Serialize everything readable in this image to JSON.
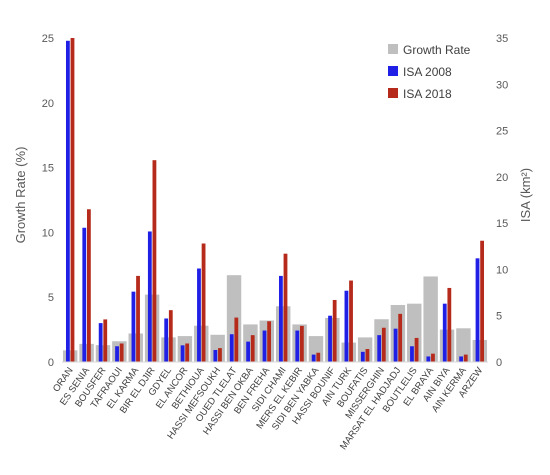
{
  "chart_data": {
    "type": "bar",
    "categories": [
      "ORAN",
      "ES SENIA",
      "BOUSFER",
      "TAFRAOUI",
      "EL KARMA",
      "BIR EL DJIR",
      "GDYEL",
      "EL ANCOR",
      "BETHIOUA",
      "HASSI MEFSOUKH",
      "OUED TLELAT",
      "HASSI BEN OKBA",
      "BEN FREHA",
      "SIDI CHAMI",
      "MERS EL KEBIR",
      "SIDI BEN YABKA",
      "HASSI BOUNIF",
      "AIN TURK",
      "BOUFATIS",
      "MISSERGHIN",
      "MARSAT EL HADJADJ",
      "BOUTLELIS",
      "EL BRAYA",
      "AIN BIYA",
      "AIN KERMA",
      "ARZEW"
    ],
    "series": [
      {
        "name": "Growth Rate",
        "axis": "left",
        "color": "#bfbfbf",
        "values": [
          0.9,
          1.4,
          1.3,
          1.6,
          2.2,
          5.2,
          1.9,
          2.0,
          2.8,
          2.1,
          6.7,
          2.9,
          3.2,
          4.3,
          2.9,
          2.0,
          3.4,
          1.5,
          1.9,
          3.3,
          4.4,
          4.5,
          6.6,
          2.5,
          2.6,
          1.7
        ]
      },
      {
        "name": "ISA 2008",
        "axis": "right",
        "color": "#1f1fe6",
        "values": [
          34.7,
          14.5,
          4.2,
          1.7,
          7.6,
          14.1,
          4.7,
          1.8,
          10.1,
          1.3,
          3.0,
          2.2,
          3.4,
          9.3,
          3.4,
          0.8,
          5.0,
          7.7,
          1.1,
          2.9,
          3.6,
          1.7,
          0.6,
          6.3,
          0.6,
          11.2
        ]
      },
      {
        "name": "ISA 2018",
        "axis": "right",
        "color": "#b52a1a",
        "values": [
          35.0,
          16.5,
          4.6,
          2.0,
          9.3,
          21.8,
          5.6,
          2.0,
          12.8,
          1.5,
          4.8,
          2.9,
          4.4,
          11.7,
          3.9,
          1.0,
          6.7,
          8.8,
          1.4,
          3.7,
          5.2,
          2.6,
          0.9,
          8.0,
          0.8,
          13.1
        ]
      }
    ],
    "ylabel": "Growth Rate (%)",
    "y2label": "ISA (km²)",
    "ylim": [
      0,
      25
    ],
    "y2lim": [
      0,
      35
    ],
    "yticks": [
      0,
      5,
      10,
      15,
      20,
      25
    ],
    "y2ticks": [
      0,
      5,
      10,
      15,
      20,
      25,
      30,
      35
    ],
    "legend": "top-right",
    "grid": false
  }
}
